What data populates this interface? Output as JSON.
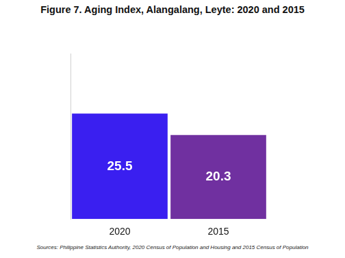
{
  "chart_data": {
    "type": "bar",
    "title": "Figure 7. Aging Index, Alangalang, Leyte: 2020 and 2015",
    "source": "Sources: Philippine Statistics Authority, 2020 Census of Population and Housing and 2015 Census of Population",
    "categories": [
      "2020",
      "2015"
    ],
    "values": [
      25.5,
      20.3
    ],
    "colors": [
      "#3a1ff0",
      "#7030a0"
    ],
    "ylim": [
      0,
      40
    ],
    "grid": false,
    "data_labels": true,
    "tick_labels": "x"
  }
}
